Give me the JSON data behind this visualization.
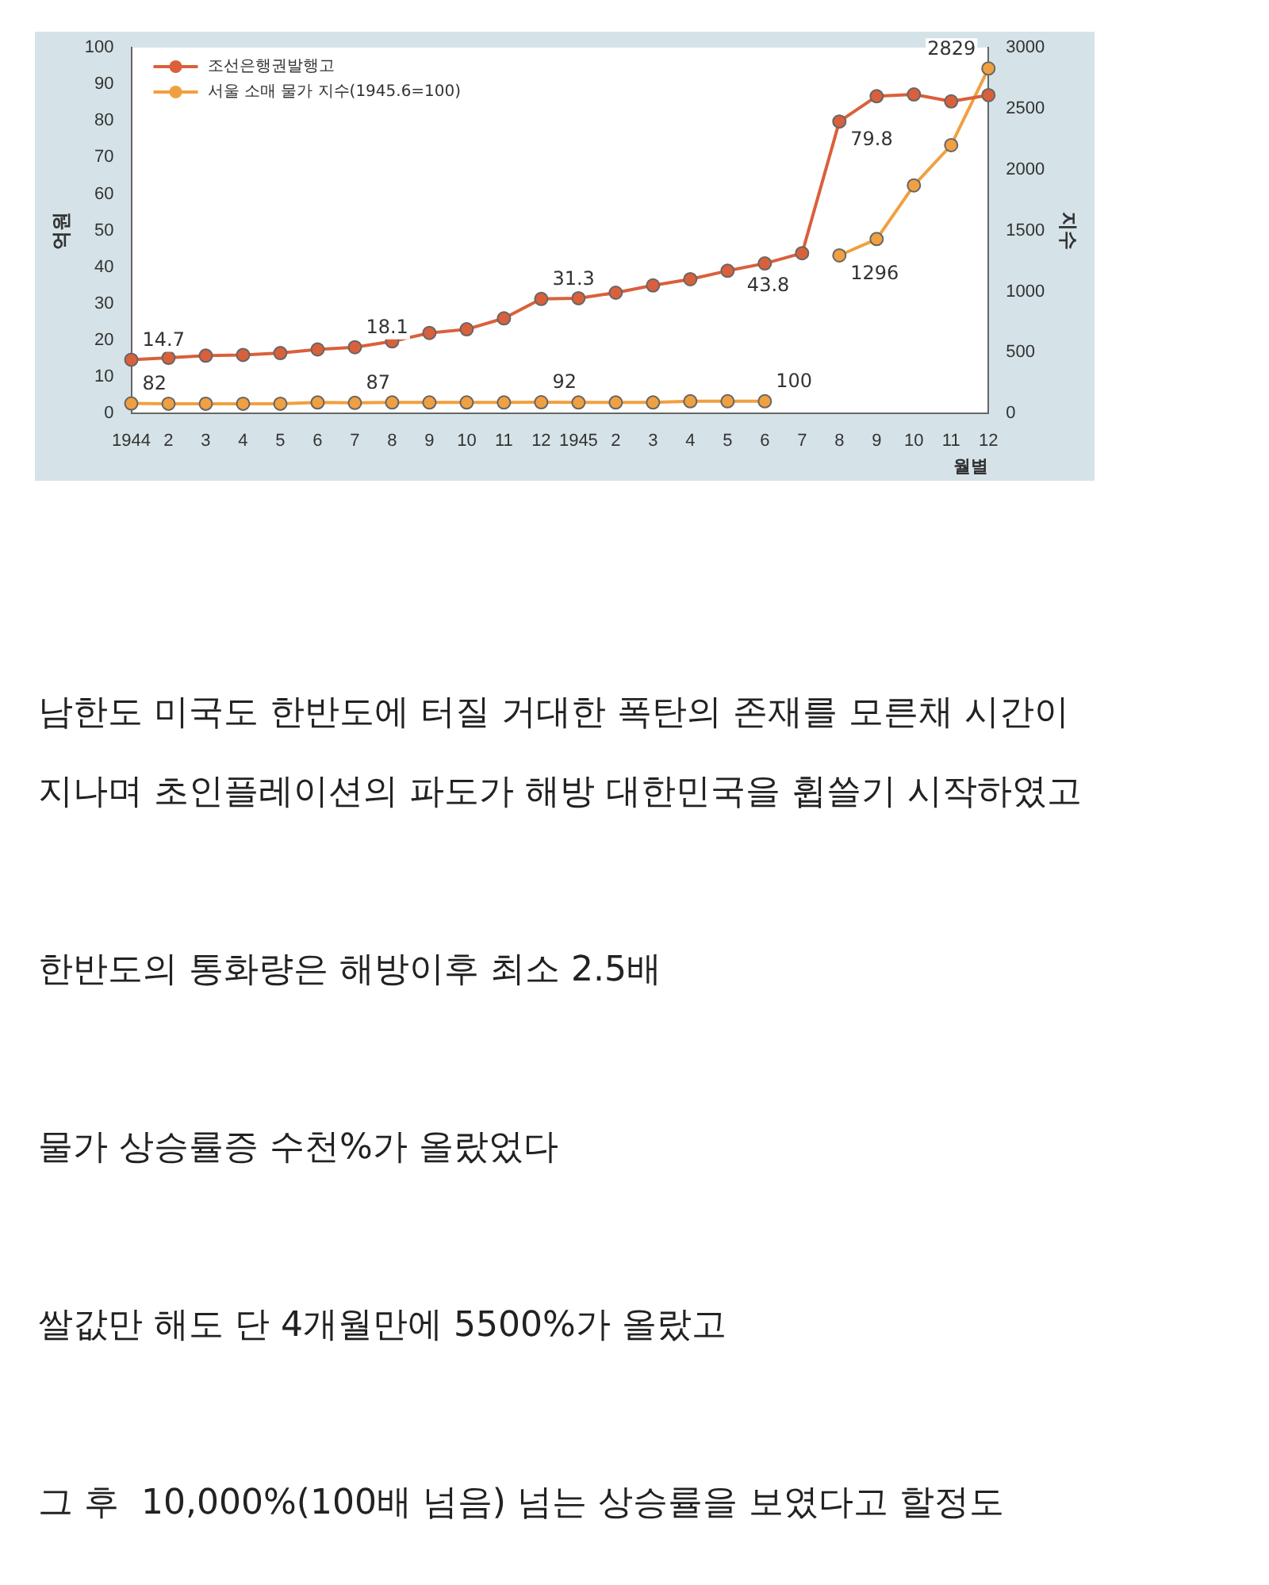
{
  "chart_data": {
    "type": "line",
    "categories": [
      "1944",
      "2",
      "3",
      "4",
      "5",
      "6",
      "7",
      "8",
      "9",
      "10",
      "11",
      "12",
      "1945",
      "2",
      "3",
      "4",
      "5",
      "6",
      "7",
      "8",
      "9",
      "10",
      "11",
      "12"
    ],
    "series": [
      {
        "name": "조선은행권발행고",
        "color": "#d9603b",
        "values": [
          14.7,
          15.2,
          15.8,
          16,
          16.5,
          17.5,
          18.1,
          19.7,
          22,
          23,
          26,
          31.3,
          31.5,
          33,
          35,
          36.7,
          39,
          41,
          43.8,
          79.8,
          86.7,
          87.2,
          85.3,
          87
        ],
        "value_labels": [
          "14.7",
          null,
          null,
          null,
          null,
          null,
          "18.1",
          null,
          null,
          null,
          null,
          "31.3",
          null,
          null,
          null,
          null,
          null,
          null,
          "43.8",
          "79.8",
          null,
          null,
          null,
          null
        ]
      },
      {
        "name": "서울 소매 물가 지수(1945.6=100)",
        "color": "#f0a040",
        "axis": "y2",
        "values": [
          82,
          80,
          80,
          80,
          80,
          90,
          87,
          90,
          90,
          90,
          90,
          92,
          90,
          90,
          90,
          100,
          100,
          100,
          null,
          1296,
          1430,
          1870,
          2200,
          2829
        ],
        "value_labels": [
          "82",
          null,
          null,
          null,
          null,
          null,
          "87",
          null,
          null,
          null,
          null,
          "92",
          null,
          null,
          null,
          null,
          null,
          "100",
          null,
          "1296",
          null,
          null,
          null,
          "2829"
        ]
      }
    ],
    "ylabel": "억원",
    "y2label": "지수",
    "xlabel": "월별",
    "ylim": [
      0,
      100
    ],
    "yticks": [
      0,
      10,
      20,
      30,
      40,
      50,
      60,
      70,
      80,
      90,
      100
    ],
    "y2lim": [
      0,
      3000
    ],
    "y2ticks": [
      0,
      500,
      1000,
      1500,
      2000,
      2500,
      3000
    ],
    "marker": "circle",
    "grid": false,
    "legend": "top left",
    "annotations": [
      "남한도 미국도 한반도에 터질 거대한 폭탄의 존재를 모른채 시간이",
      "지나며 초인플레이션의 파도가 해방 대한민국을 휩쓸기 시작하였고",
      "한반도의 통화량은 해방이후 최소 2.5배",
      "물가 상승률증 수천%가 올랐었다",
      "쌀값만 해도 단 4개월만에 5500%가 올랐고",
      "그 후  10,000%(100배 넘음) 넘는 상승률을 보였다고 할정도"
    ]
  }
}
